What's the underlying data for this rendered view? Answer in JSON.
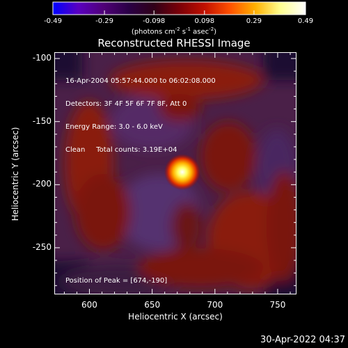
{
  "colorbar": {
    "ticks": [
      "-0.49",
      "-0.29",
      "-0.098",
      "0.098",
      "0.29",
      "0.49"
    ],
    "unit_prefix": "(photons cm",
    "unit_exp1": "-2",
    "unit_mid1": " s",
    "unit_exp2": "-1",
    "unit_mid2": " asec",
    "unit_exp3": "-2",
    "unit_suffix": ")",
    "colors": [
      "#0000ff",
      "#5a00c0",
      "#500078",
      "#2a0046",
      "#300018",
      "#7a0008",
      "#c01000",
      "#ff5000",
      "#ffb000",
      "#ffff90",
      "#ffffff"
    ]
  },
  "chart_data": {
    "type": "heatmap",
    "title": "Reconstructed RHESSI Image",
    "info_lines": [
      "16-Apr-2004 05:57:44.000 to 06:02:08.000",
      "Detectors: 3F 4F 5F 6F 7F 8F, Att 0",
      "Energy Range: 3.0 - 6.0 keV",
      "Clean     Total counts: 3.19E+04"
    ],
    "peak_label": "Position of Peak = [674,-190]",
    "peak": [
      674,
      -190
    ],
    "xlabel": "Heliocentric X (arcsec)",
    "ylabel": "Heliocentric Y (arcsec)",
    "xlim": [
      572,
      765
    ],
    "ylim": [
      -287,
      -95
    ],
    "x_ticks": [
      600,
      650,
      700,
      750
    ],
    "y_ticks": [
      -100,
      -150,
      -200,
      -250
    ],
    "value_range": [
      -0.49,
      0.49
    ]
  },
  "footer": {
    "timestamp": "30-Apr-2022 04:37"
  }
}
